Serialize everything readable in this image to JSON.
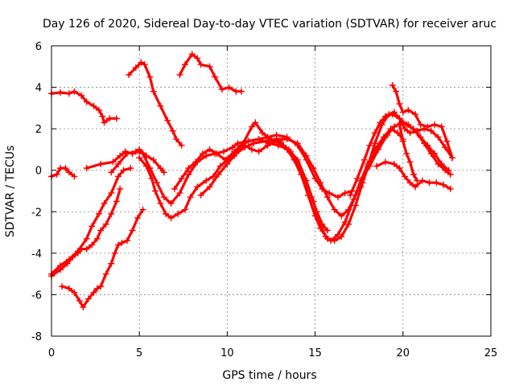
{
  "chart_data": {
    "type": "scatter",
    "title": "Day 126 of 2020, Sidereal Day-to-day VTEC variation (SDTVAR) for receiver aruc",
    "xlabel": "GPS time / hours",
    "ylabel": "SDTVAR / TECUs",
    "xlim": [
      0,
      25
    ],
    "ylim": [
      -8,
      6
    ],
    "xticks": [
      0,
      5,
      10,
      15,
      20,
      25
    ],
    "yticks": [
      -8,
      -6,
      -4,
      -2,
      0,
      2,
      4,
      6
    ],
    "grid": true,
    "marker": "+",
    "color": "#ff0000",
    "series": [
      {
        "name": "s1",
        "points": [
          [
            0,
            3.7
          ],
          [
            0.5,
            3.75
          ],
          [
            1.0,
            3.7
          ],
          [
            1.3,
            3.8
          ],
          [
            1.7,
            3.6
          ],
          [
            2.0,
            3.3
          ],
          [
            2.4,
            3.1
          ],
          [
            2.7,
            2.9
          ],
          [
            2.9,
            2.6
          ],
          [
            3.0,
            2.3
          ],
          [
            3.3,
            2.5
          ],
          [
            3.7,
            2.5
          ]
        ]
      },
      {
        "name": "s2",
        "points": [
          [
            4.4,
            4.6
          ],
          [
            4.8,
            4.95
          ],
          [
            5.1,
            5.2
          ],
          [
            5.3,
            5.1
          ],
          [
            5.6,
            4.5
          ],
          [
            5.8,
            3.8
          ],
          [
            6.2,
            3.1
          ],
          [
            6.6,
            2.4
          ],
          [
            6.9,
            1.9
          ],
          [
            7.1,
            1.5
          ],
          [
            7.4,
            1.2
          ]
        ]
      },
      {
        "name": "s3",
        "points": [
          [
            7.3,
            4.6
          ],
          [
            7.6,
            5.1
          ],
          [
            8.0,
            5.6
          ],
          [
            8.3,
            5.4
          ],
          [
            8.5,
            5.1
          ],
          [
            9.0,
            5.0
          ],
          [
            9.3,
            4.5
          ],
          [
            9.7,
            3.9
          ],
          [
            10.1,
            4.0
          ],
          [
            10.5,
            3.8
          ],
          [
            10.8,
            3.8
          ]
        ]
      },
      {
        "name": "s4",
        "points": [
          [
            0,
            -0.3
          ],
          [
            0.3,
            -0.2
          ],
          [
            0.5,
            0.1
          ],
          [
            0.8,
            0.1
          ],
          [
            1.0,
            -0.1
          ],
          [
            1.3,
            -0.3
          ]
        ]
      },
      {
        "name": "s5",
        "points": [
          [
            2.0,
            0.1
          ],
          [
            2.8,
            0.3
          ],
          [
            3.5,
            0.4
          ],
          [
            3.9,
            0.7
          ],
          [
            4.2,
            0.9
          ],
          [
            4.6,
            0.8
          ],
          [
            5.0,
            1.0
          ],
          [
            5.4,
            0.7
          ],
          [
            5.8,
            0.5
          ],
          [
            6.2,
            0.1
          ],
          [
            6.4,
            -0.1
          ]
        ]
      },
      {
        "name": "s6",
        "points": [
          [
            3.4,
            -0.1
          ],
          [
            3.8,
            0.3
          ],
          [
            4.3,
            0.8
          ],
          [
            4.8,
            0.9
          ],
          [
            5.2,
            0.8
          ],
          [
            5.6,
            0.1
          ],
          [
            6.0,
            -0.6
          ],
          [
            6.4,
            -1.3
          ],
          [
            6.8,
            -1.6
          ],
          [
            7.3,
            -1.1
          ],
          [
            7.8,
            -0.2
          ],
          [
            8.3,
            0.4
          ],
          [
            8.8,
            0.7
          ],
          [
            9.3,
            0.8
          ],
          [
            9.8,
            0.9
          ],
          [
            10.3,
            1.1
          ],
          [
            10.6,
            1.3
          ],
          [
            11.2,
            1.4
          ],
          [
            11.8,
            1.5
          ],
          [
            12.3,
            1.6
          ],
          [
            12.8,
            1.7
          ],
          [
            13.4,
            1.6
          ],
          [
            14.0,
            1.2
          ],
          [
            14.5,
            0.5
          ],
          [
            15.0,
            -0.4
          ],
          [
            15.4,
            -0.9
          ],
          [
            15.8,
            -1.1
          ],
          [
            16.3,
            -1.3
          ],
          [
            16.7,
            -1.1
          ],
          [
            17.1,
            -1.0
          ]
        ]
      },
      {
        "name": "s7",
        "points": [
          [
            0,
            -5.1
          ],
          [
            0.5,
            -4.8
          ],
          [
            0.9,
            -4.5
          ],
          [
            1.2,
            -4.2
          ],
          [
            1.5,
            -4.0
          ],
          [
            1.7,
            -3.8
          ],
          [
            2.0,
            -3.8
          ],
          [
            2.3,
            -3.6
          ],
          [
            2.6,
            -3.3
          ],
          [
            2.8,
            -2.9
          ],
          [
            3.1,
            -2.6
          ],
          [
            3.4,
            -2.1
          ],
          [
            3.7,
            -1.5
          ],
          [
            3.9,
            -0.9
          ]
        ]
      },
      {
        "name": "s8",
        "points": [
          [
            0.6,
            -5.6
          ],
          [
            1.0,
            -5.7
          ],
          [
            1.3,
            -5.9
          ],
          [
            1.6,
            -6.3
          ],
          [
            1.8,
            -6.6
          ],
          [
            2.1,
            -6.2
          ],
          [
            2.4,
            -5.9
          ],
          [
            2.6,
            -5.7
          ],
          [
            2.8,
            -5.6
          ],
          [
            3.1,
            -5.0
          ],
          [
            3.4,
            -4.5
          ],
          [
            3.6,
            -4.0
          ],
          [
            3.8,
            -3.6
          ],
          [
            4.0,
            -3.5
          ],
          [
            4.3,
            -3.4
          ],
          [
            4.6,
            -2.9
          ],
          [
            4.9,
            -2.3
          ],
          [
            5.2,
            -1.9
          ]
        ]
      },
      {
        "name": "s9",
        "points": [
          [
            0,
            -5.0
          ],
          [
            0.5,
            -4.6
          ],
          [
            1.0,
            -4.3
          ],
          [
            1.5,
            -3.9
          ],
          [
            2.0,
            -3.3
          ],
          [
            2.3,
            -2.7
          ],
          [
            2.7,
            -2.1
          ],
          [
            3.0,
            -1.6
          ],
          [
            3.4,
            -1.1
          ],
          [
            3.8,
            -0.3
          ],
          [
            4.1,
            0.0
          ],
          [
            4.5,
            0.1
          ]
        ]
      },
      {
        "name": "s10",
        "points": [
          [
            5.0,
            0.6
          ],
          [
            5.4,
            0.2
          ],
          [
            5.7,
            -0.4
          ],
          [
            5.9,
            -1.0
          ],
          [
            6.2,
            -1.6
          ],
          [
            6.5,
            -2.1
          ],
          [
            6.8,
            -2.3
          ],
          [
            7.2,
            -2.1
          ],
          [
            7.6,
            -1.9
          ],
          [
            7.9,
            -1.3
          ],
          [
            8.3,
            -0.8
          ],
          [
            8.8,
            -0.5
          ],
          [
            9.2,
            -0.3
          ],
          [
            9.6,
            0.2
          ],
          [
            10.0,
            0.5
          ],
          [
            10.4,
            0.7
          ],
          [
            10.8,
            1.2
          ],
          [
            11.2,
            1.4
          ],
          [
            11.8,
            1.5
          ],
          [
            12.4,
            1.3
          ],
          [
            12.9,
            1.2
          ],
          [
            13.5,
            1.0
          ],
          [
            14.0,
            0.5
          ],
          [
            14.5,
            -0.5
          ],
          [
            14.9,
            -1.5
          ],
          [
            15.2,
            -2.4
          ],
          [
            15.6,
            -3.2
          ],
          [
            15.9,
            -3.4
          ],
          [
            16.3,
            -3.1
          ],
          [
            16.7,
            -2.5
          ],
          [
            17.2,
            -1.4
          ],
          [
            17.6,
            -0.5
          ],
          [
            18.0,
            0.3
          ],
          [
            18.4,
            1.0
          ],
          [
            18.9,
            1.6
          ],
          [
            19.3,
            2.0
          ],
          [
            19.7,
            1.8
          ],
          [
            20.0,
            1.5
          ]
        ]
      },
      {
        "name": "s11",
        "points": [
          [
            7.0,
            -0.9
          ],
          [
            7.4,
            -0.4
          ],
          [
            7.8,
            0.1
          ],
          [
            8.2,
            0.4
          ],
          [
            8.6,
            0.8
          ],
          [
            9.0,
            1.0
          ],
          [
            9.4,
            0.8
          ],
          [
            9.9,
            0.5
          ],
          [
            10.4,
            0.9
          ],
          [
            10.9,
            1.3
          ],
          [
            11.4,
            2.1
          ],
          [
            11.6,
            2.3
          ],
          [
            12.0,
            1.8
          ],
          [
            12.5,
            1.5
          ],
          [
            13.0,
            1.4
          ],
          [
            13.4,
            1.0
          ],
          [
            13.8,
            0.5
          ],
          [
            14.2,
            -0.2
          ],
          [
            14.6,
            -1.2
          ],
          [
            15.0,
            -2.2
          ],
          [
            15.3,
            -2.8
          ],
          [
            15.7,
            -3.3
          ],
          [
            16.1,
            -3.4
          ],
          [
            16.5,
            -3.2
          ],
          [
            16.9,
            -2.6
          ],
          [
            17.3,
            -1.7
          ],
          [
            17.7,
            -0.6
          ],
          [
            18.1,
            0.4
          ],
          [
            18.5,
            1.0
          ],
          [
            19.0,
            1.6
          ],
          [
            19.5,
            2.1
          ]
        ]
      },
      {
        "name": "s12",
        "points": [
          [
            8.5,
            -1.2
          ],
          [
            9.0,
            -0.8
          ],
          [
            9.5,
            -0.2
          ],
          [
            10.0,
            0.3
          ],
          [
            10.5,
            0.8
          ],
          [
            11.0,
            1.1
          ],
          [
            11.5,
            1.3
          ],
          [
            12.2,
            1.4
          ],
          [
            12.8,
            1.5
          ],
          [
            13.4,
            1.5
          ],
          [
            14.0,
            1.3
          ],
          [
            14.5,
            0.7
          ],
          [
            14.9,
            0.1
          ],
          [
            15.3,
            -0.6
          ],
          [
            15.7,
            -1.3
          ],
          [
            16.1,
            -1.9
          ],
          [
            16.5,
            -2.2
          ],
          [
            16.9,
            -1.9
          ],
          [
            17.3,
            -1.2
          ],
          [
            17.7,
            -0.4
          ],
          [
            18.1,
            0.2
          ],
          [
            18.6,
            1.0
          ],
          [
            19.1,
            1.7
          ],
          [
            19.5,
            2.1
          ],
          [
            19.9,
            2.3
          ],
          [
            20.3,
            2.2
          ],
          [
            20.8,
            1.8
          ],
          [
            21.2,
            1.3
          ],
          [
            21.6,
            0.8
          ],
          [
            22.0,
            0.3
          ],
          [
            22.4,
            0.0
          ],
          [
            22.7,
            -0.2
          ]
        ]
      },
      {
        "name": "s13",
        "points": [
          [
            17.0,
            -1.2
          ],
          [
            17.4,
            -0.4
          ],
          [
            17.8,
            0.5
          ],
          [
            18.1,
            1.2
          ],
          [
            18.4,
            1.8
          ],
          [
            18.7,
            2.3
          ],
          [
            19.0,
            2.6
          ],
          [
            19.4,
            2.7
          ],
          [
            19.8,
            2.5
          ],
          [
            20.2,
            2.2
          ],
          [
            20.6,
            2.0
          ],
          [
            21.0,
            1.6
          ],
          [
            21.4,
            1.2
          ],
          [
            21.8,
            0.8
          ],
          [
            22.2,
            0.3
          ],
          [
            22.6,
            0.0
          ]
        ]
      },
      {
        "name": "s14",
        "points": [
          [
            17.6,
            -0.8
          ],
          [
            18.0,
            0.2
          ],
          [
            18.4,
            1.3
          ],
          [
            18.8,
            2.2
          ],
          [
            19.2,
            2.7
          ],
          [
            19.5,
            2.8
          ],
          [
            19.8,
            2.5
          ],
          [
            20.1,
            2.0
          ],
          [
            20.4,
            1.8
          ],
          [
            20.8,
            1.9
          ],
          [
            21.2,
            2.0
          ],
          [
            21.6,
            1.9
          ],
          [
            22.0,
            1.6
          ],
          [
            22.4,
            1.1
          ],
          [
            22.8,
            0.6
          ]
        ]
      },
      {
        "name": "s15",
        "points": [
          [
            18.5,
            0.2
          ],
          [
            19.0,
            0.4
          ],
          [
            19.5,
            0.3
          ],
          [
            19.8,
            0.1
          ],
          [
            20.1,
            -0.3
          ],
          [
            20.4,
            -0.6
          ],
          [
            20.7,
            -0.8
          ],
          [
            21.1,
            -0.5
          ],
          [
            21.5,
            -0.6
          ],
          [
            21.9,
            -0.6
          ],
          [
            22.3,
            -0.7
          ],
          [
            22.7,
            -0.9
          ]
        ]
      },
      {
        "name": "s16",
        "points": [
          [
            19.4,
            4.1
          ],
          [
            19.6,
            3.8
          ],
          [
            19.8,
            3.2
          ],
          [
            20.0,
            2.8
          ],
          [
            20.3,
            2.9
          ],
          [
            20.7,
            2.7
          ],
          [
            21.0,
            2.2
          ],
          [
            21.4,
            2.1
          ],
          [
            21.8,
            2.2
          ],
          [
            22.2,
            2.1
          ],
          [
            22.5,
            1.4
          ],
          [
            22.8,
            0.6
          ]
        ]
      },
      {
        "name": "s17",
        "points": [
          [
            19.8,
            2.2
          ],
          [
            20.0,
            1.4
          ],
          [
            20.2,
            0.8
          ],
          [
            20.4,
            0.4
          ],
          [
            20.6,
            -0.2
          ],
          [
            20.8,
            -0.5
          ]
        ]
      },
      {
        "name": "s18",
        "points": [
          [
            10.2,
            0.6
          ],
          [
            10.6,
            1.0
          ],
          [
            11.0,
            1.2
          ],
          [
            11.4,
            1.0
          ],
          [
            11.8,
            0.9
          ],
          [
            12.3,
            1.2
          ],
          [
            12.7,
            1.4
          ],
          [
            13.2,
            1.2
          ],
          [
            13.6,
            0.9
          ],
          [
            14.0,
            0.4
          ],
          [
            14.4,
            -0.4
          ],
          [
            14.8,
            -1.3
          ],
          [
            15.1,
            -2.0
          ],
          [
            15.4,
            -2.6
          ],
          [
            15.7,
            -2.9
          ]
        ]
      }
    ]
  }
}
